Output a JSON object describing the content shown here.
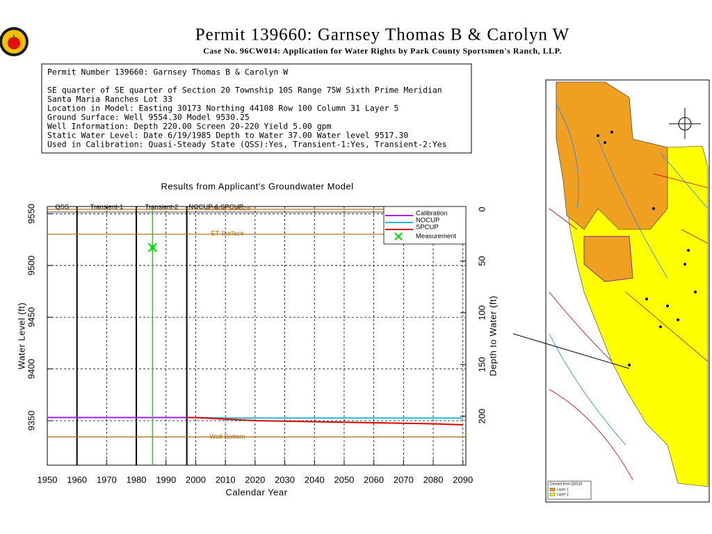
{
  "header": {
    "title": "Permit 139660:  Garnsey Thomas B & Carolyn W",
    "subtitle": "Case No. 96CW014: Application for Water Rights by Park County Sportsmen's Ranch, LLP."
  },
  "info_box": {
    "lines": [
      "Permit Number 139660: Garnsey Thomas B & Carolyn W",
      "SE quarter of SE quarter of Section 20 Township 10S Range 75W Sixth Prime Meridian",
      "Santa Maria Ranches Lot 33",
      "Location in Model: Easting 30173 Northing  44108 Row 100 Column 31 Layer 5",
      "Ground Surface: Well   9554.30 Model   9530.25",
      "Well Information: Depth    220.00 Screen 20-220 Yield      5.00 gpm",
      "Static Water Level: Date  6/19/1985 Depth to Water     37.00 Water level   9517.30",
      "Used in Calibration: Quasi-Steady State (QSS):Yes, Transient-1:Yes, Transient-2:Yes"
    ]
  },
  "chart_data": {
    "type": "line",
    "title": "Results from Applicant's Groundwater Model",
    "x_label": "Calendar Year",
    "y_label": "Water Level (ft)",
    "y2_label": "Depth to Water (ft)",
    "xlim": [
      1950,
      2091
    ],
    "xticks": [
      1950,
      1960,
      1970,
      1980,
      1990,
      2000,
      2010,
      2020,
      2030,
      2040,
      2050,
      2060,
      2070,
      2080,
      2090
    ],
    "ylim": [
      9307,
      9557
    ],
    "yticks": [
      9350,
      9400,
      9450,
      9500,
      9550
    ],
    "y2lim": [
      247.3,
      -2.7
    ],
    "y2ticks": [
      0,
      50,
      100,
      150,
      200
    ],
    "grid": true,
    "legend_position": "upper right",
    "periods": [
      "QSS",
      "Transient-1",
      "Transient-2",
      "NOCUP & SPCUP"
    ],
    "period_boundaries": [
      1960,
      1980,
      1997
    ],
    "reference_lines": [
      {
        "label": "Ground Surface",
        "value": 9554.3,
        "color": "#b06a10"
      },
      {
        "label": "ET Surface",
        "value": 9530.25,
        "color": "#b06a10"
      },
      {
        "label": "Well Bottom",
        "value": 9334.3,
        "color": "#b06a10"
      }
    ],
    "x": [
      1950,
      1960,
      1970,
      1980,
      1990,
      1997,
      2000,
      2010,
      2020,
      2030,
      2040,
      2050,
      2060,
      2070,
      2080,
      2090
    ],
    "series": [
      {
        "name": "Calibration",
        "color": "#a020f0",
        "values": [
          9353,
          9353,
          9353,
          9353,
          9353,
          9353,
          null,
          null,
          null,
          null,
          null,
          null,
          null,
          null,
          null,
          null
        ]
      },
      {
        "name": "NOCUP",
        "color": "#20b8d8",
        "values": [
          null,
          null,
          null,
          null,
          null,
          9353,
          9353,
          9352.5,
          9352.5,
          9352.5,
          9352.5,
          9352.5,
          9352.5,
          9352.5,
          9352.5,
          9352.5
        ]
      },
      {
        "name": "SPCUP",
        "color": "#d80000",
        "values": [
          null,
          null,
          null,
          null,
          null,
          9353,
          9353,
          9351.5,
          9350,
          9349.5,
          9349,
          9348.5,
          9348,
          9347.5,
          9347,
          9346
        ]
      }
    ],
    "measurement": {
      "name": "Measurement",
      "color": "#00e000",
      "x": 1985.46,
      "value": 9517.3
    }
  },
  "map": {
    "legend_title": "Domain from QSS19",
    "legend_items": [
      "Layer 1",
      "Layer 2"
    ]
  }
}
